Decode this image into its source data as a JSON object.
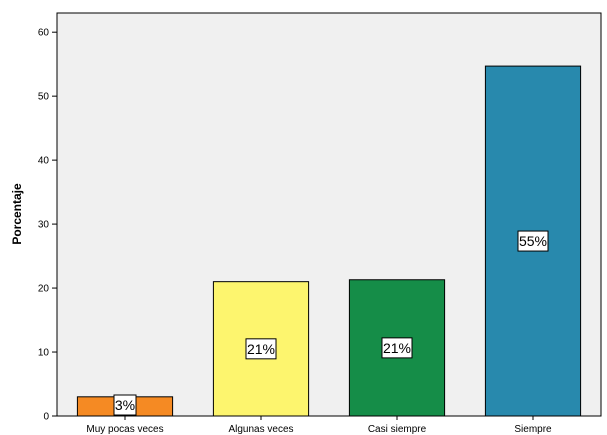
{
  "chart_data": {
    "type": "bar",
    "ylabel": "Porcentaje",
    "xlabel": "",
    "ylim": [
      0,
      63
    ],
    "yticks": [
      0,
      10,
      20,
      30,
      40,
      50,
      60
    ],
    "grid": false,
    "categories": [
      "Muy pocas veces",
      "Algunas veces",
      "Casi siempre",
      "Siempre"
    ],
    "values": [
      3,
      21,
      21.3,
      54.7
    ],
    "data_labels": [
      "3%",
      "21%",
      "21%",
      "55%"
    ],
    "colors": [
      "#f58a23",
      "#fdf56e",
      "#158d48",
      "#2889ad"
    ],
    "plot_background": "#f0f0f0"
  }
}
